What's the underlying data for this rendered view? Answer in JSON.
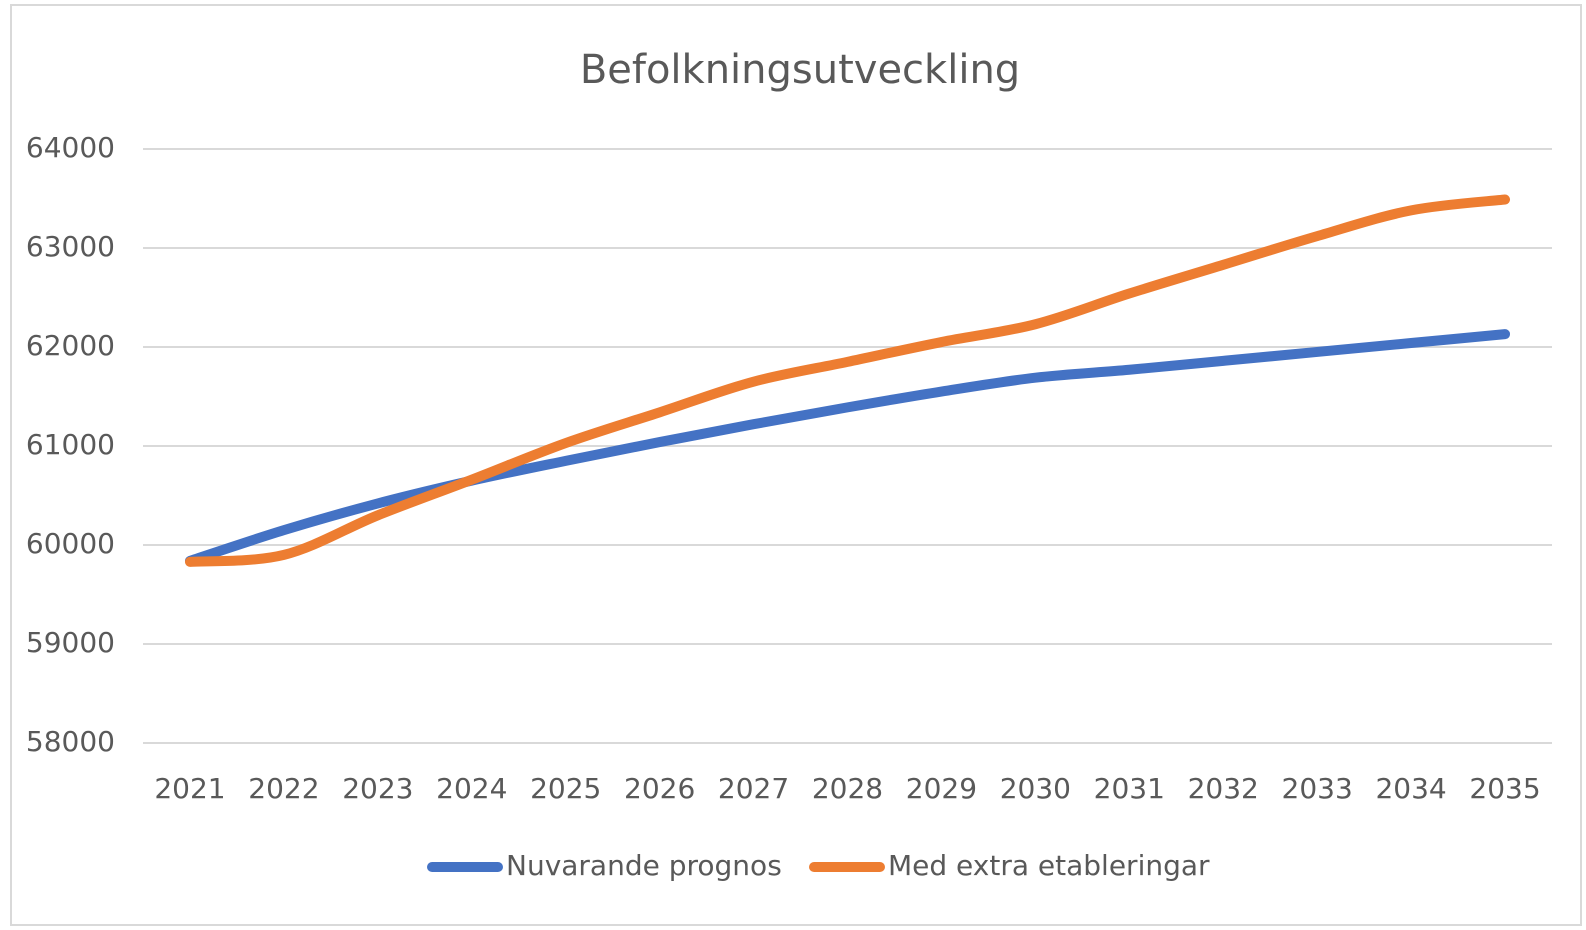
{
  "chart_data": {
    "type": "line",
    "title": "Befolkningsutveckling",
    "categories": [
      "2021",
      "2022",
      "2023",
      "2024",
      "2025",
      "2026",
      "2027",
      "2028",
      "2029",
      "2030",
      "2031",
      "2032",
      "2033",
      "2034",
      "2035"
    ],
    "series": [
      {
        "name": "Nuvarande prognos",
        "color": "#4472c4",
        "values": [
          59840,
          60150,
          60420,
          60650,
          60850,
          61040,
          61220,
          61390,
          61550,
          61690,
          61770,
          61860,
          61950,
          62040,
          62130
        ]
      },
      {
        "name": "Med extra etableringar",
        "color": "#ed7d31",
        "values": [
          59830,
          59900,
          60300,
          60660,
          61030,
          61340,
          61650,
          61850,
          62050,
          62230,
          62540,
          62830,
          63120,
          63380,
          63490
        ]
      }
    ],
    "ylim": [
      58000,
      64000
    ],
    "yticks": [
      58000,
      59000,
      60000,
      61000,
      62000,
      63000,
      64000
    ],
    "grid": true,
    "legend": "bottom",
    "smooth": true
  }
}
